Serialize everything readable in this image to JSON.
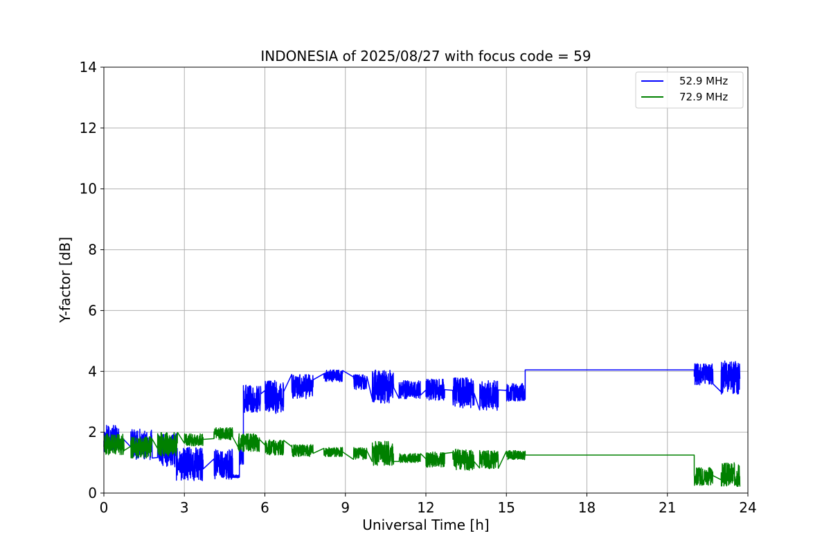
{
  "chart_data": {
    "type": "line",
    "title": "INDONESIA of 2025/08/27 with focus code = 59",
    "xlabel": "Universal Time [h]",
    "ylabel": "Y-factor [dB]",
    "xlim": [
      0,
      24
    ],
    "ylim": [
      0,
      14
    ],
    "xticks": [
      0,
      3,
      6,
      9,
      12,
      15,
      18,
      21,
      24
    ],
    "yticks": [
      0,
      2,
      4,
      6,
      8,
      10,
      12,
      14
    ],
    "grid": true,
    "legend_position": "top-right",
    "series": [
      {
        "name": "52.9 MHz",
        "color": "#0000ff",
        "segments": [
          {
            "x0": 0.0,
            "x1": 0.55,
            "mean": 1.8,
            "amp": 0.45
          },
          {
            "x0": 0.55,
            "x1": 0.75,
            "mean": 1.75,
            "amp": 0.05
          },
          {
            "x0": 1.0,
            "x1": 1.8,
            "mean": 1.6,
            "amp": 0.5
          },
          {
            "x0": 2.0,
            "x1": 2.7,
            "mean": 1.4,
            "amp": 0.55
          },
          {
            "x0": 2.7,
            "x1": 3.7,
            "mean": 0.95,
            "amp": 0.55
          },
          {
            "x0": 4.1,
            "x1": 4.8,
            "mean": 0.95,
            "amp": 0.5
          },
          {
            "x0": 4.8,
            "x1": 5.05,
            "mean": 0.55,
            "amp": 0.05
          },
          {
            "x0": 5.05,
            "x1": 5.2,
            "mean": 1.2,
            "amp": 0.3
          },
          {
            "x0": 5.2,
            "x1": 5.85,
            "mean": 3.1,
            "amp": 0.45
          },
          {
            "x0": 6.0,
            "x1": 6.7,
            "mean": 3.15,
            "amp": 0.55
          },
          {
            "x0": 7.0,
            "x1": 7.8,
            "mean": 3.5,
            "amp": 0.4
          },
          {
            "x0": 8.2,
            "x1": 8.9,
            "mean": 3.85,
            "amp": 0.2
          },
          {
            "x0": 9.3,
            "x1": 9.8,
            "mean": 3.65,
            "amp": 0.25
          },
          {
            "x0": 10.0,
            "x1": 10.8,
            "mean": 3.5,
            "amp": 0.55
          },
          {
            "x0": 11.0,
            "x1": 11.8,
            "mean": 3.4,
            "amp": 0.3
          },
          {
            "x0": 12.0,
            "x1": 12.7,
            "mean": 3.4,
            "amp": 0.35
          },
          {
            "x0": 13.0,
            "x1": 13.8,
            "mean": 3.3,
            "amp": 0.5
          },
          {
            "x0": 14.0,
            "x1": 14.7,
            "mean": 3.2,
            "amp": 0.5
          },
          {
            "x0": 15.0,
            "x1": 15.7,
            "mean": 3.3,
            "amp": 0.3
          },
          {
            "x0": 15.7,
            "x1": 22.0,
            "mean": 4.05,
            "amp": 0.0
          },
          {
            "x0": 22.0,
            "x1": 22.7,
            "mean": 3.9,
            "amp": 0.35
          },
          {
            "x0": 23.0,
            "x1": 23.7,
            "mean": 3.8,
            "amp": 0.55
          }
        ]
      },
      {
        "name": "72.9 MHz",
        "color": "#008000",
        "segments": [
          {
            "x0": 0.0,
            "x1": 0.75,
            "mean": 1.6,
            "amp": 0.35
          },
          {
            "x0": 1.0,
            "x1": 1.8,
            "mean": 1.5,
            "amp": 0.35
          },
          {
            "x0": 2.0,
            "x1": 2.75,
            "mean": 1.6,
            "amp": 0.4
          },
          {
            "x0": 3.0,
            "x1": 3.7,
            "mean": 1.75,
            "amp": 0.2
          },
          {
            "x0": 4.1,
            "x1": 4.8,
            "mean": 1.95,
            "amp": 0.2
          },
          {
            "x0": 5.0,
            "x1": 5.8,
            "mean": 1.65,
            "amp": 0.3
          },
          {
            "x0": 6.0,
            "x1": 6.7,
            "mean": 1.5,
            "amp": 0.25
          },
          {
            "x0": 7.0,
            "x1": 7.8,
            "mean": 1.4,
            "amp": 0.2
          },
          {
            "x0": 8.2,
            "x1": 8.9,
            "mean": 1.35,
            "amp": 0.15
          },
          {
            "x0": 9.3,
            "x1": 9.8,
            "mean": 1.3,
            "amp": 0.2
          },
          {
            "x0": 10.0,
            "x1": 10.8,
            "mean": 1.3,
            "amp": 0.4
          },
          {
            "x0": 11.0,
            "x1": 11.8,
            "mean": 1.15,
            "amp": 0.15
          },
          {
            "x0": 12.0,
            "x1": 12.7,
            "mean": 1.1,
            "amp": 0.25
          },
          {
            "x0": 13.0,
            "x1": 13.8,
            "mean": 1.1,
            "amp": 0.35
          },
          {
            "x0": 14.0,
            "x1": 14.7,
            "mean": 1.1,
            "amp": 0.3
          },
          {
            "x0": 15.0,
            "x1": 15.7,
            "mean": 1.25,
            "amp": 0.15
          },
          {
            "x0": 15.7,
            "x1": 22.0,
            "mean": 1.25,
            "amp": 0.0
          },
          {
            "x0": 22.0,
            "x1": 22.7,
            "mean": 0.55,
            "amp": 0.3
          },
          {
            "x0": 23.0,
            "x1": 23.7,
            "mean": 0.6,
            "amp": 0.4
          }
        ]
      }
    ]
  }
}
